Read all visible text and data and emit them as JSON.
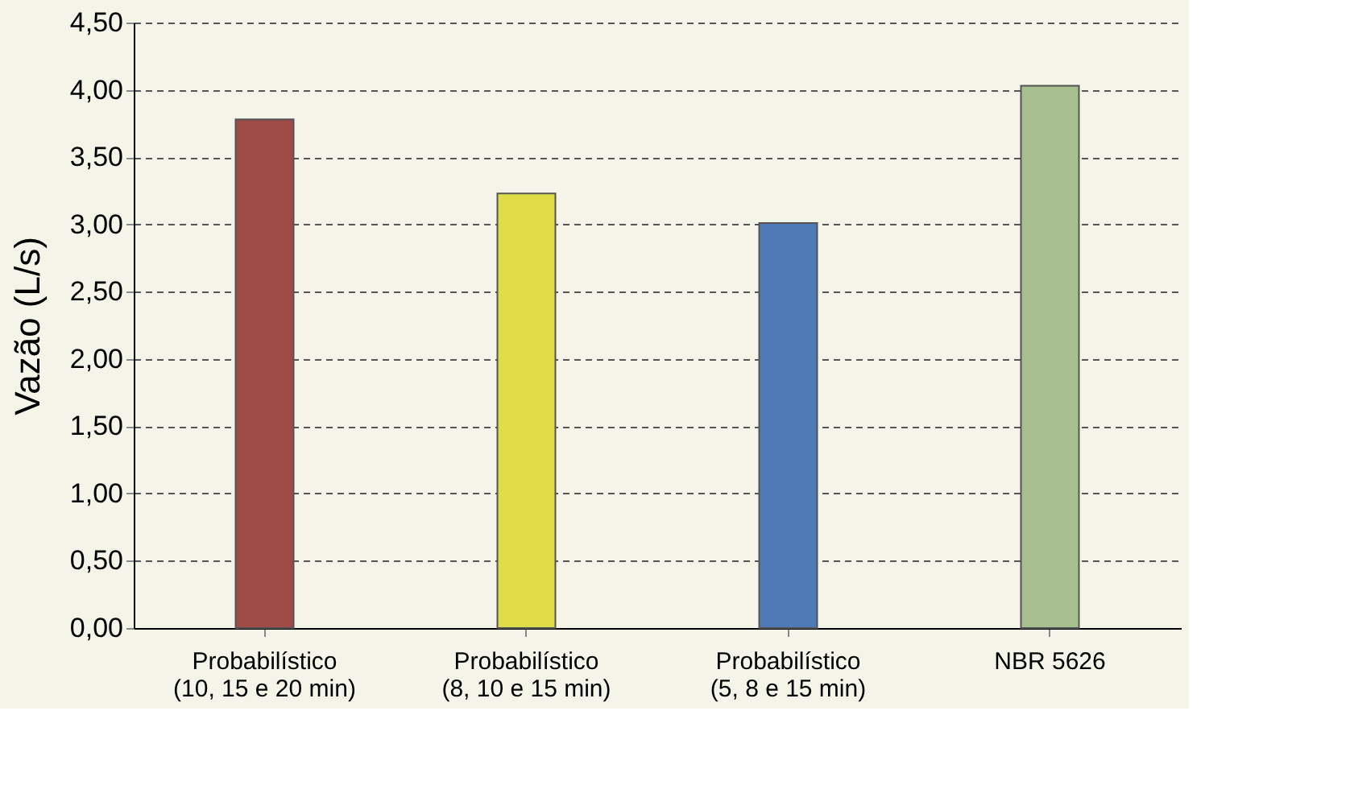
{
  "chart_data": {
    "type": "bar",
    "ylabel": "Vazão (L/s)",
    "categories": [
      "Probabilístico\n(10, 15 e 20 min)",
      "Probabilístico\n(8, 10 e 15 min)",
      "Probabilístico\n(5, 8 e 15 min)",
      "NBR 5626"
    ],
    "values": [
      3.78,
      3.23,
      3.01,
      4.03
    ],
    "colors": [
      "#9e4a46",
      "#e0dc48",
      "#4f7ab5",
      "#a8bf90"
    ],
    "ylim": [
      0,
      4.5
    ],
    "yticks": [
      {
        "value": 0,
        "label": "0,00"
      },
      {
        "value": 0.5,
        "label": "0,50"
      },
      {
        "value": 1,
        "label": "1,00"
      },
      {
        "value": 1.5,
        "label": "1,50"
      },
      {
        "value": 2,
        "label": "2,00"
      },
      {
        "value": 2.5,
        "label": "2,50"
      },
      {
        "value": 3,
        "label": "3,00"
      },
      {
        "value": 3.5,
        "label": "3,50"
      },
      {
        "value": 4,
        "label": "4,00"
      },
      {
        "value": 4.5,
        "label": "4,50"
      }
    ],
    "grid": "y",
    "legend": false
  }
}
